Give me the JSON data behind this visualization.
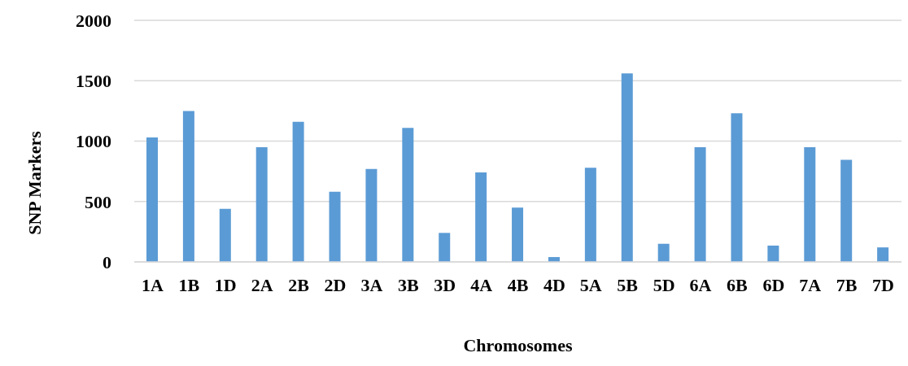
{
  "chart_data": {
    "type": "bar",
    "xlabel": "Chromosomes",
    "ylabel": "SNP Markers",
    "categories": [
      "1A",
      "1B",
      "1D",
      "2A",
      "2B",
      "2D",
      "3A",
      "3B",
      "3D",
      "4A",
      "4B",
      "4D",
      "5A",
      "5B",
      "5D",
      "6A",
      "6B",
      "6D",
      "7A",
      "7B",
      "7D"
    ],
    "values": [
      1030,
      1250,
      440,
      950,
      1160,
      580,
      770,
      1110,
      240,
      740,
      450,
      40,
      780,
      1560,
      150,
      950,
      1230,
      135,
      950,
      845,
      120
    ],
    "color": "#5b9bd5",
    "ylim": [
      0,
      2000
    ],
    "yticks": [
      0,
      500,
      1000,
      1500,
      2000
    ],
    "grid": "y"
  }
}
